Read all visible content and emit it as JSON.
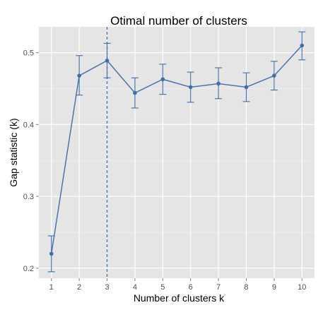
{
  "chart_data": {
    "type": "line",
    "title": "Otimal number of clusters",
    "xlabel": "Number of clusters k",
    "ylabel": "Gap statistic (k)",
    "x": [
      1,
      2,
      3,
      4,
      5,
      6,
      7,
      8,
      9,
      10
    ],
    "x_ticks": [
      "1",
      "2",
      "3",
      "4",
      "5",
      "6",
      "7",
      "8",
      "9",
      "10"
    ],
    "y_ticks": [
      "0.2",
      "0.3",
      "0.4",
      "0.5"
    ],
    "xlim": [
      0.55,
      10.45
    ],
    "ylim": [
      0.186,
      0.536
    ],
    "grid": true,
    "series": [
      {
        "values": [
          0.22,
          0.468,
          0.489,
          0.444,
          0.463,
          0.452,
          0.457,
          0.452,
          0.468,
          0.51
        ],
        "error_low": [
          0.195,
          0.441,
          0.465,
          0.423,
          0.442,
          0.431,
          0.436,
          0.432,
          0.448,
          0.49
        ],
        "error_high": [
          0.245,
          0.496,
          0.513,
          0.465,
          0.484,
          0.473,
          0.479,
          0.472,
          0.488,
          0.529
        ]
      }
    ],
    "reference_line": {
      "x": 3,
      "style": "dashed"
    },
    "colors": {
      "series": "#3f6ea8",
      "panel_background": "#e5e5e5",
      "grid_major": "#ffffff",
      "grid_minor": "#f2f2f2"
    }
  }
}
